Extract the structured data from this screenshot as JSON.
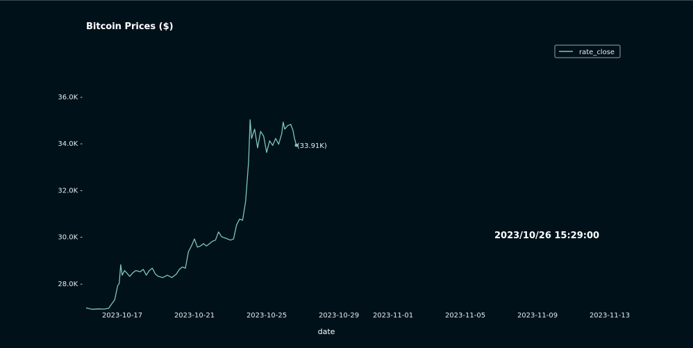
{
  "chart_data": {
    "type": "line",
    "title": "Bitcoin Prices ($)",
    "xlabel": "date",
    "ylabel": "",
    "y_ticks": [
      28000,
      30000,
      32000,
      34000,
      36000
    ],
    "y_tick_labels": [
      "28.0K",
      "30.0K",
      "32.0K",
      "34.0K",
      "36.0K"
    ],
    "x_ticks": [
      "2023-10-17",
      "2023-10-21",
      "2023-10-25",
      "2023-10-29",
      "2023-11-01",
      "2023-11-05",
      "2023-11-09",
      "2023-11-13"
    ],
    "x_range": [
      "2023-10-15",
      "2023-11-14"
    ],
    "y_range": [
      26900,
      37300
    ],
    "legend_position": "top-right",
    "grid": false,
    "series": [
      {
        "name": "rate_close",
        "color": "#7ec8bd",
        "points": [
          [
            "2023-10-15T00:00",
            26950
          ],
          [
            "2023-10-15T08:00",
            26890
          ],
          [
            "2023-10-15T16:00",
            26910
          ],
          [
            "2023-10-16T00:00",
            26900
          ],
          [
            "2023-10-16T06:00",
            26940
          ],
          [
            "2023-10-16T10:00",
            27120
          ],
          [
            "2023-10-16T14:00",
            27300
          ],
          [
            "2023-10-16T18:00",
            27900
          ],
          [
            "2023-10-16T20:00",
            28000
          ],
          [
            "2023-10-16T22:00",
            28800
          ],
          [
            "2023-10-17T00:00",
            28350
          ],
          [
            "2023-10-17T03:00",
            28550
          ],
          [
            "2023-10-17T06:00",
            28450
          ],
          [
            "2023-10-17T10:00",
            28300
          ],
          [
            "2023-10-17T14:00",
            28450
          ],
          [
            "2023-10-17T18:00",
            28550
          ],
          [
            "2023-10-18T00:00",
            28500
          ],
          [
            "2023-10-18T04:00",
            28600
          ],
          [
            "2023-10-18T08:00",
            28350
          ],
          [
            "2023-10-18T12:00",
            28550
          ],
          [
            "2023-10-18T16:00",
            28650
          ],
          [
            "2023-10-18T20:00",
            28400
          ],
          [
            "2023-10-19T00:00",
            28300
          ],
          [
            "2023-10-19T06:00",
            28250
          ],
          [
            "2023-10-19T12:00",
            28350
          ],
          [
            "2023-10-19T18:00",
            28250
          ],
          [
            "2023-10-20T00:00",
            28400
          ],
          [
            "2023-10-20T04:00",
            28600
          ],
          [
            "2023-10-20T08:00",
            28700
          ],
          [
            "2023-10-20T12:00",
            28650
          ],
          [
            "2023-10-20T16:00",
            29350
          ],
          [
            "2023-10-20T20:00",
            29600
          ],
          [
            "2023-10-21T00:00",
            29900
          ],
          [
            "2023-10-21T04:00",
            29550
          ],
          [
            "2023-10-21T08:00",
            29600
          ],
          [
            "2023-10-21T12:00",
            29700
          ],
          [
            "2023-10-21T16:00",
            29600
          ],
          [
            "2023-10-21T20:00",
            29700
          ],
          [
            "2023-10-22T00:00",
            29800
          ],
          [
            "2023-10-22T04:00",
            29850
          ],
          [
            "2023-10-22T08:00",
            30200
          ],
          [
            "2023-10-22T12:00",
            30000
          ],
          [
            "2023-10-22T16:00",
            29950
          ],
          [
            "2023-10-22T20:00",
            29900
          ],
          [
            "2023-10-23T00:00",
            29850
          ],
          [
            "2023-10-23T04:00",
            29900
          ],
          [
            "2023-10-23T08:00",
            30500
          ],
          [
            "2023-10-23T12:00",
            30750
          ],
          [
            "2023-10-23T16:00",
            30700
          ],
          [
            "2023-10-23T20:00",
            31500
          ],
          [
            "2023-10-24T00:00",
            33200
          ],
          [
            "2023-10-24T02:00",
            35000
          ],
          [
            "2023-10-24T04:00",
            34200
          ],
          [
            "2023-10-24T08:00",
            34600
          ],
          [
            "2023-10-24T12:00",
            33800
          ],
          [
            "2023-10-24T16:00",
            34500
          ],
          [
            "2023-10-24T20:00",
            34300
          ],
          [
            "2023-10-25T00:00",
            33600
          ],
          [
            "2023-10-25T04:00",
            34100
          ],
          [
            "2023-10-25T08:00",
            33900
          ],
          [
            "2023-10-25T12:00",
            34200
          ],
          [
            "2023-10-25T16:00",
            33950
          ],
          [
            "2023-10-25T20:00",
            34400
          ],
          [
            "2023-10-25T22:00",
            34900
          ],
          [
            "2023-10-26T00:00",
            34600
          ],
          [
            "2023-10-26T04:00",
            34750
          ],
          [
            "2023-10-26T08:00",
            34800
          ],
          [
            "2023-10-26T11:00",
            34550
          ],
          [
            "2023-10-26T13:00",
            34200
          ],
          [
            "2023-10-26T15:29",
            33910
          ]
        ]
      }
    ],
    "annotations": [
      {
        "text": "(33.91K)",
        "x": "2023-10-26T15:29",
        "y": 33910
      },
      {
        "text": "2023/10/26 15:29:00"
      }
    ]
  }
}
